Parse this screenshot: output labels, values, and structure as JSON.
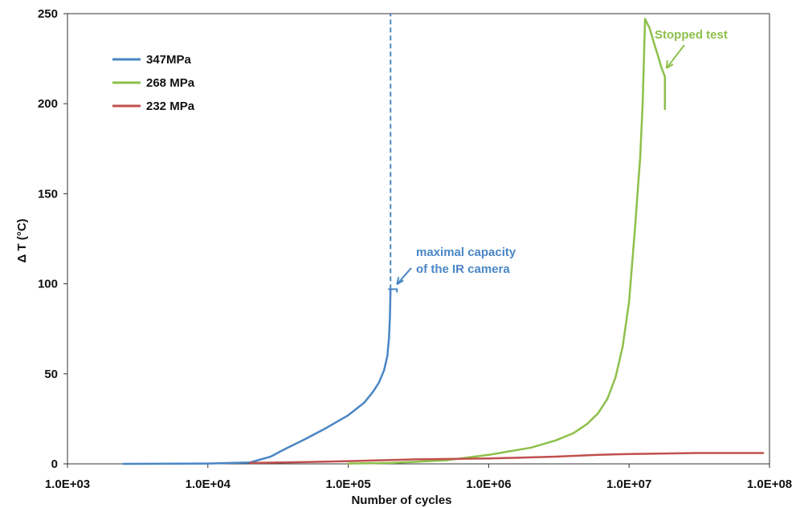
{
  "chart_data": {
    "type": "line",
    "title": "",
    "xlabel": "Number of cycles",
    "ylabel": "Δ T (°C)",
    "x_scale": "log",
    "xlim": [
      1000,
      100000000
    ],
    "ylim": [
      0,
      250
    ],
    "x_ticks": [
      "1.0E+03",
      "1.0E+04",
      "1.0E+05",
      "1.0E+06",
      "1.0E+07",
      "1.0E+08"
    ],
    "y_ticks": [
      "0",
      "50",
      "100",
      "150",
      "200",
      "250"
    ],
    "grid": false,
    "legend_position": "top-left",
    "series": [
      {
        "name": "347MPa",
        "color": "#4a86c5",
        "points": [
          [
            2500,
            0
          ],
          [
            10000,
            0.2
          ],
          [
            20000,
            0.8
          ],
          [
            28000,
            4
          ],
          [
            35000,
            8
          ],
          [
            50000,
            14
          ],
          [
            70000,
            20
          ],
          [
            100000,
            27
          ],
          [
            130000,
            34
          ],
          [
            150000,
            40
          ],
          [
            165000,
            45
          ],
          [
            180000,
            52
          ],
          [
            190000,
            60
          ],
          [
            195000,
            70
          ],
          [
            198000,
            82
          ],
          [
            200000,
            97
          ]
        ],
        "dashed_extension": [
          [
            200000,
            97
          ],
          [
            200000,
            250
          ]
        ]
      },
      {
        "name": "268 MPa",
        "color": "#8dc04a",
        "points": [
          [
            100000,
            0.2
          ],
          [
            200000,
            0.5
          ],
          [
            500000,
            2
          ],
          [
            1000000,
            5
          ],
          [
            2000000,
            9
          ],
          [
            3000000,
            13
          ],
          [
            4000000,
            17
          ],
          [
            5000000,
            22
          ],
          [
            6000000,
            28
          ],
          [
            7000000,
            36
          ],
          [
            8000000,
            48
          ],
          [
            9000000,
            65
          ],
          [
            10000000,
            90
          ],
          [
            11000000,
            130
          ],
          [
            12000000,
            170
          ],
          [
            12500000,
            200
          ],
          [
            13000000,
            247
          ],
          [
            14000000,
            242
          ],
          [
            15000000,
            234
          ],
          [
            16000000,
            227
          ],
          [
            17000000,
            220
          ],
          [
            18000000,
            215
          ],
          [
            18000000,
            197
          ]
        ]
      },
      {
        "name": "232 MPa",
        "color": "#c0504d",
        "points": [
          [
            20000,
            0.5
          ],
          [
            50000,
            1
          ],
          [
            100000,
            1.5
          ],
          [
            300000,
            2.5
          ],
          [
            1000000,
            3
          ],
          [
            3000000,
            4
          ],
          [
            6000000,
            5
          ],
          [
            10000000,
            5.5
          ],
          [
            30000000,
            6
          ],
          [
            90000000,
            6
          ]
        ]
      }
    ],
    "annotations": [
      {
        "text_lines": [
          "maximal capacity",
          "of the IR camera"
        ],
        "color": "#4a86c5",
        "target": [
          200000,
          97
        ]
      },
      {
        "text_lines": [
          "Stopped test"
        ],
        "color": "#8dc04a",
        "target": [
          18000000,
          217
        ]
      }
    ]
  }
}
